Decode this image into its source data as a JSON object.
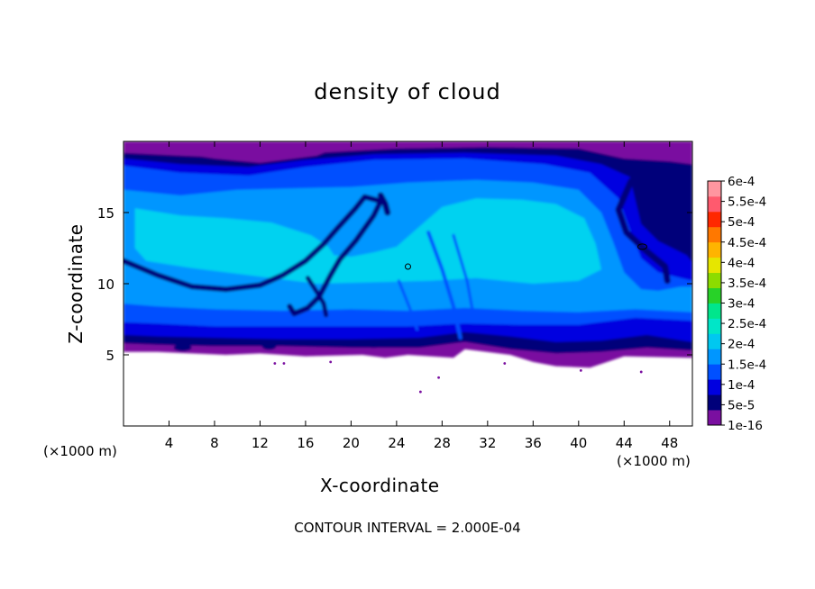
{
  "chart_data": {
    "type": "heatmap",
    "title": "density of cloud",
    "xlabel": "X-coordinate",
    "ylabel": "Z-coordinate",
    "x_unit": "(×1000 m)",
    "xlim": [
      0,
      50
    ],
    "ylim": [
      0,
      20
    ],
    "x_ticks": [
      4,
      8,
      12,
      16,
      20,
      24,
      28,
      32,
      36,
      40,
      44,
      48
    ],
    "y_ticks": [
      5,
      10,
      15
    ],
    "footnote": "CONTOUR INTERVAL = 2.000E-04",
    "colorbar": {
      "labels": [
        "6e-4",
        "5.5e-4",
        "5e-4",
        "4.5e-4",
        "4e-4",
        "3.5e-4",
        "3e-4",
        "2.5e-4",
        "2e-4",
        "1.5e-4",
        "1e-4",
        "5e-5",
        "1e-16"
      ],
      "colors": [
        "#7a0fa0",
        "#00007a",
        "#0000e0",
        "#0050ff",
        "#0096ff",
        "#00c8f0",
        "#00e6c8",
        "#00e68c",
        "#28d228",
        "#8cdc00",
        "#e6e600",
        "#ffb400",
        "#ff7800",
        "#ff2800",
        "#ff5a6e",
        "#ff96a0"
      ]
    },
    "cloud_base_z": 4.8,
    "cloud_top_z": 20,
    "contour_levels": [
      0.0002
    ],
    "contour_cells": [
      {
        "x": 25.0,
        "z": 11.2
      },
      {
        "x": 45.6,
        "z": 12.6
      }
    ],
    "field_palette": {
      "background": "#ffffff",
      "outer": "#7a0fa0",
      "low": "#00007a",
      "mid": "#0000e0",
      "blue": "#0050ff",
      "sky": "#0096ff",
      "cyan": "#00d2f0"
    }
  }
}
